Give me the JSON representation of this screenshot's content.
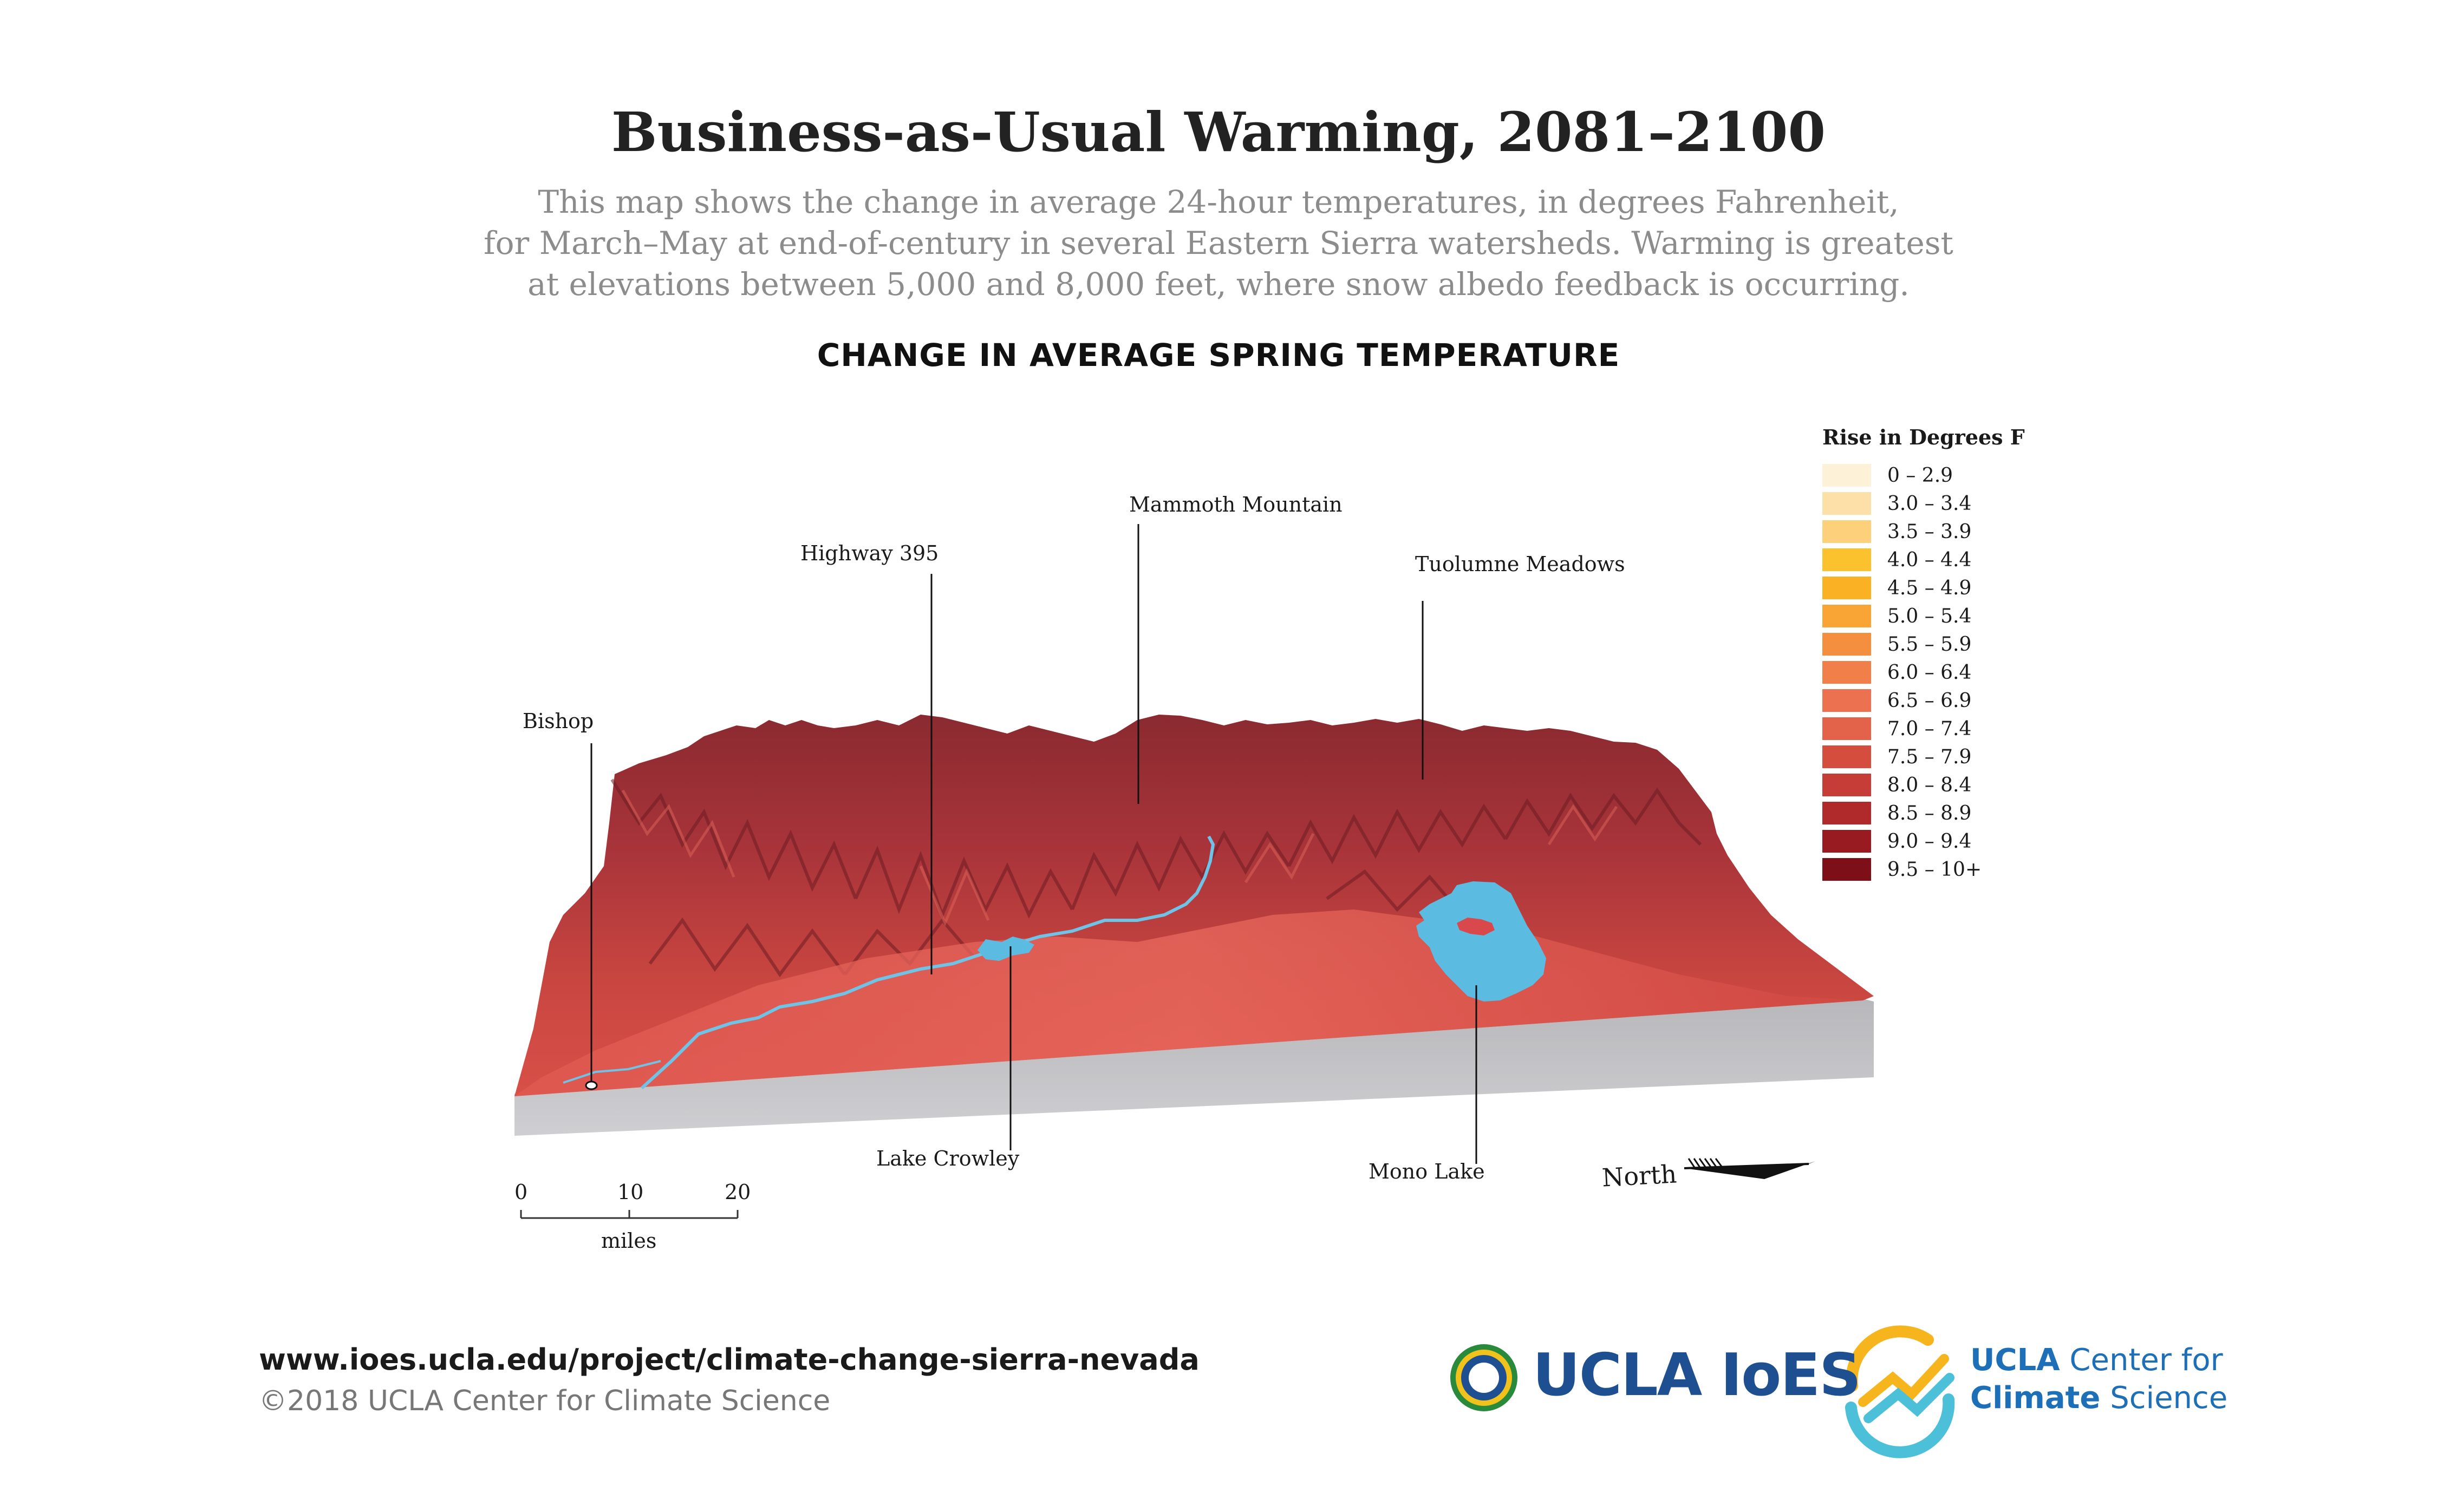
{
  "title": "Business-as-Usual Warming, 2081–2100",
  "description_lines": [
    "This map shows the change in average 24-hour temperatures, in degrees Fahrenheit,",
    "for March–May at end-of-century in several Eastern Sierra watersheds. Warming is greatest",
    "at elevations between 5,000 and 8,000 feet, where snow albedo feedback is occurring."
  ],
  "subtitle": "CHANGE IN AVERAGE SPRING TEMPERATURE",
  "places": {
    "bishop": "Bishop",
    "highway_395": "Highway 395",
    "mammoth_mountain": "Mammoth Mountain",
    "tuolumne_meadows": "Tuolumne Meadows",
    "lake_crowley": "Lake Crowley",
    "mono_lake": "Mono Lake"
  },
  "legend": {
    "title": "Rise in Degrees F",
    "items": [
      {
        "label": "0 – 2.9",
        "color": "#fdf1d8"
      },
      {
        "label": "3.0 – 3.4",
        "color": "#fde0a8"
      },
      {
        "label": "3.5 – 3.9",
        "color": "#fdd07c"
      },
      {
        "label": "4.0 – 4.4",
        "color": "#fcc22e"
      },
      {
        "label": "4.5 – 4.9",
        "color": "#fbb124"
      },
      {
        "label": "5.0 – 5.4",
        "color": "#f8a536"
      },
      {
        "label": "5.5 – 5.9",
        "color": "#f48f3f"
      },
      {
        "label": "6.0 – 6.4",
        "color": "#f07f4a"
      },
      {
        "label": "6.5 – 6.9",
        "color": "#eb7150"
      },
      {
        "label": "7.0 – 7.4",
        "color": "#e2624a"
      },
      {
        "label": "7.5 – 7.9",
        "color": "#d54e3d"
      },
      {
        "label": "8.0 – 8.4",
        "color": "#c53d36"
      },
      {
        "label": "8.5 – 8.9",
        "color": "#b02a2c"
      },
      {
        "label": "9.0 – 9.4",
        "color": "#991b22"
      },
      {
        "label": "9.5 – 10+",
        "color": "#7d0f19"
      }
    ]
  },
  "scale": {
    "ticks": [
      "0",
      "10",
      "20"
    ],
    "unit": "miles"
  },
  "north_label": "North",
  "footer": {
    "url": "www.ioes.ucla.edu/project/climate-change-sierra-nevada",
    "copyright": "©2018 UCLA Center for Climate Science"
  },
  "logos": {
    "ioes": "UCLA IoES",
    "ccs_line1_a": "UCLA",
    "ccs_line1_b": " Center for",
    "ccs_line2_a": "Climate",
    "ccs_line2_b": " Science"
  },
  "colors": {
    "lake": "#5bbbe0",
    "base": "#c6c6c8",
    "terrain": "#c53d36"
  }
}
